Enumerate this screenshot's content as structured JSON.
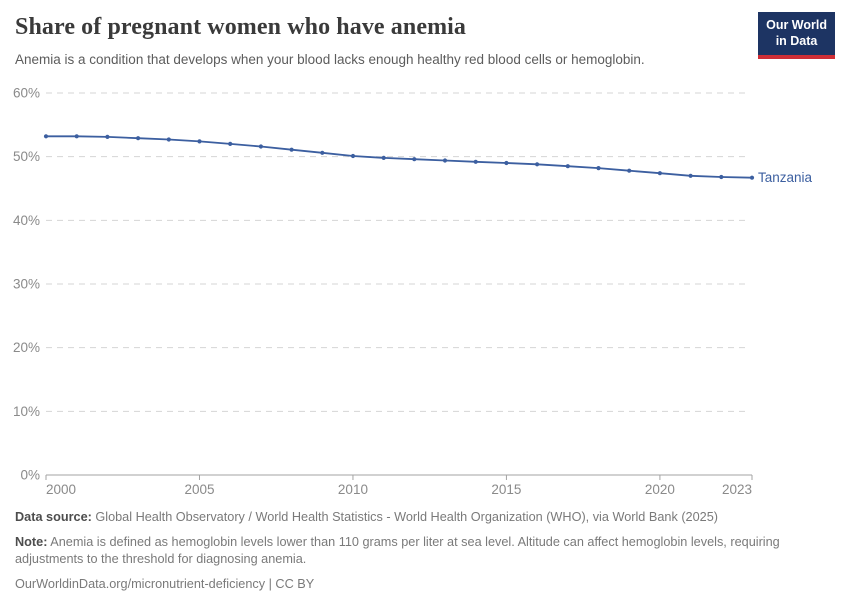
{
  "header": {
    "title": "Share of pregnant women who have anemia",
    "subtitle": "Anemia is a condition that develops when your blood lacks enough healthy red blood cells or hemoglobin."
  },
  "logo": {
    "line1": "Our World",
    "line2": "in Data",
    "bg_color": "#1d3463",
    "accent_color": "#cf2e36"
  },
  "chart_data": {
    "type": "line",
    "title": "Share of pregnant women who have anemia",
    "x": [
      2000,
      2001,
      2002,
      2003,
      2004,
      2005,
      2006,
      2007,
      2008,
      2009,
      2010,
      2011,
      2012,
      2013,
      2014,
      2015,
      2016,
      2017,
      2018,
      2019,
      2020,
      2021,
      2022,
      2023
    ],
    "series": [
      {
        "name": "Tanzania",
        "color": "#3c5fa0",
        "values": [
          53.2,
          53.2,
          53.1,
          52.9,
          52.7,
          52.4,
          52.0,
          51.6,
          51.1,
          50.6,
          50.1,
          49.8,
          49.6,
          49.4,
          49.2,
          49.0,
          48.8,
          48.5,
          48.2,
          47.8,
          47.4,
          47.0,
          46.8,
          46.7
        ]
      }
    ],
    "ylim": [
      0,
      60
    ],
    "yticks": [
      0,
      10,
      20,
      30,
      40,
      50,
      60
    ],
    "ytick_suffix": "%",
    "xticks": [
      2000,
      2005,
      2010,
      2015,
      2020,
      2023
    ],
    "grid": "horizontal-dashed",
    "grid_color": "#d5d5d5",
    "axis_color": "#a3a3a3",
    "tick_label_color": "#8a8a8a",
    "legend_position": "line-end-label"
  },
  "footer": {
    "source_label": "Data source:",
    "source_text": " Global Health Observatory / World Health Statistics - World Health Organization (WHO), via World Bank (2025)",
    "note_label": "Note:",
    "note_text": " Anemia is defined as hemoglobin levels lower than 110 grams per liter at sea level. Altitude can affect hemoglobin levels, requiring adjustments to the threshold for diagnosing anemia.",
    "citation": "OurWorldinData.org/micronutrient-deficiency | CC BY"
  }
}
